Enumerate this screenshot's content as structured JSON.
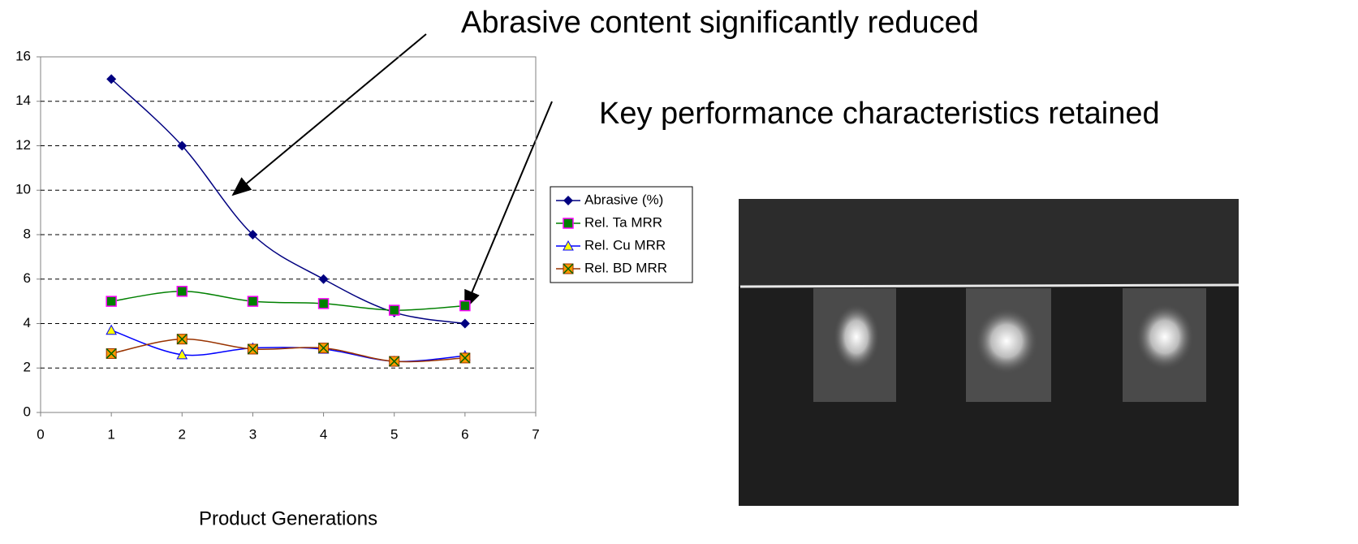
{
  "chart_data": {
    "type": "line",
    "annotations": [
      "Abrasive content significantly reduced",
      "Key performance characteristics retained"
    ],
    "x_label": "Product Generations",
    "x": [
      1,
      2,
      3,
      4,
      5,
      6
    ],
    "xlim": [
      0,
      7
    ],
    "xticks": [
      0,
      1,
      2,
      3,
      4,
      5,
      6,
      7
    ],
    "ylim": [
      0,
      16
    ],
    "yticks": [
      0,
      2,
      4,
      6,
      8,
      10,
      12,
      14,
      16
    ],
    "grid": true,
    "legend": "right",
    "smooth": true,
    "series": [
      {
        "name": "Abrasive (%)",
        "color": "#000080",
        "marker": "diamond",
        "values": [
          15,
          12,
          8,
          6,
          4.5,
          4
        ]
      },
      {
        "name": "Rel. Ta MRR",
        "color": "#008000",
        "marker": "square",
        "values": [
          5,
          5.45,
          5,
          4.9,
          4.6,
          4.8
        ]
      },
      {
        "name": "Rel. Cu MRR",
        "color": "#0000ff",
        "marker": "triangle",
        "values": [
          3.7,
          2.6,
          2.9,
          2.85,
          2.3,
          2.55
        ]
      },
      {
        "name": "Rel. BD MRR",
        "color": "#993300",
        "marker": "xsquare",
        "values": [
          2.65,
          3.3,
          2.85,
          2.9,
          2.3,
          2.45
        ]
      }
    ]
  }
}
